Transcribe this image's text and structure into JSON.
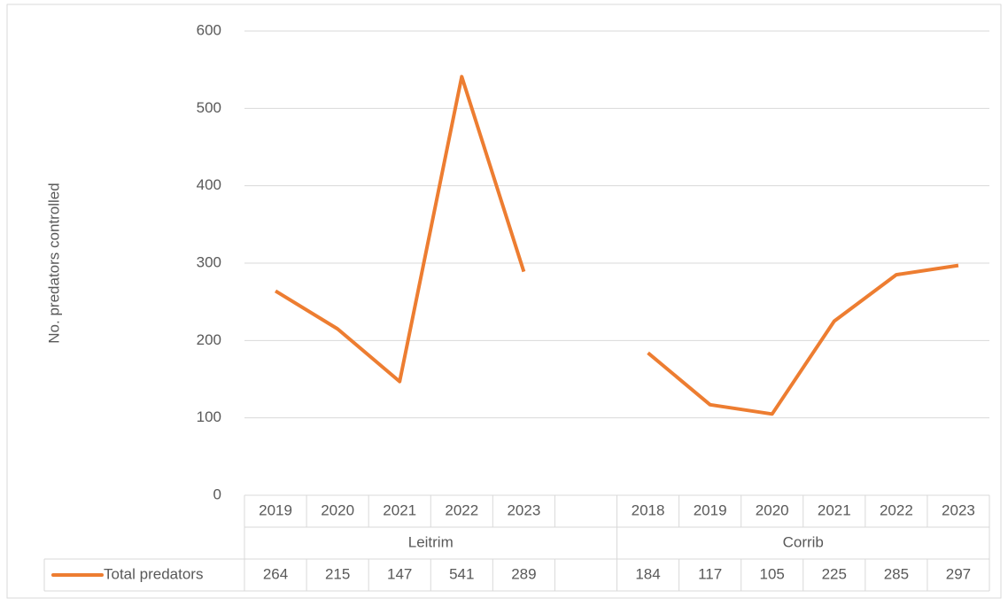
{
  "chart_data": {
    "type": "line",
    "y_label": "No. predators controlled",
    "categories": [
      "2019",
      "2020",
      "2021",
      "2022",
      "2023",
      null,
      "2018",
      "2019",
      "2020",
      "2021",
      "2022",
      "2023"
    ],
    "groups": [
      {
        "name": "Leitrim",
        "size": 6
      },
      {
        "name": "Corrib",
        "size": 6
      }
    ],
    "series": [
      {
        "name": "Total predators",
        "color": "#ed7d31",
        "values": [
          264,
          215,
          147,
          541,
          289,
          null,
          184,
          117,
          105,
          225,
          285,
          297
        ]
      }
    ],
    "ylim": [
      0,
      600
    ],
    "yticks": [
      0,
      100,
      200,
      300,
      400,
      500,
      600
    ],
    "grid": true,
    "data_table": true
  }
}
